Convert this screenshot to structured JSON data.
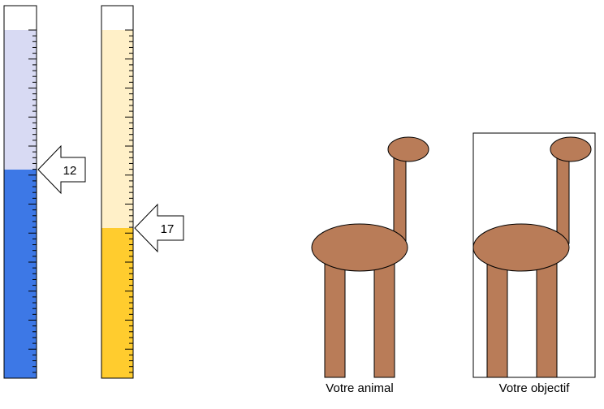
{
  "gauges": [
    {
      "id": "blue",
      "value": "12",
      "empty_color": "#ffffff",
      "track_color": "#d8daf3",
      "fill_color": "#3d78e6",
      "level_ticks_from_bottom": 36,
      "tick_count": 60
    },
    {
      "id": "yellow",
      "value": "17",
      "empty_color": "#ffffff",
      "track_color": "#fff0c8",
      "fill_color": "#ffcc2e",
      "level_ticks_from_bottom": 26,
      "tick_count": 60
    }
  ],
  "animal": {
    "label": "Votre animal",
    "body_color": "#b97c58"
  },
  "target": {
    "label": "Votre objectif",
    "body_color": "#b97c58"
  }
}
